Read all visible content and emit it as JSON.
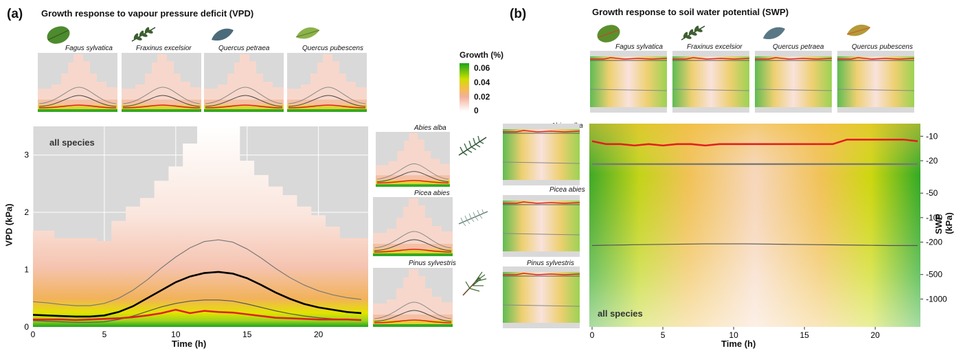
{
  "panel_a": {
    "letter": "(a)",
    "title": "Growth response to vapour pressure deficit (VPD)",
    "species_top": [
      "Fagus sylvatica",
      "Fraxinus excelsior",
      "Quercus petraea",
      "Quercus pubescens"
    ],
    "species_side": [
      "Abies alba",
      "Picea abies",
      "Pinus sylvestris"
    ],
    "main_label": "all species"
  },
  "panel_b": {
    "letter": "(b)",
    "title": "Growth response to soil water potential (SWP)",
    "species_top": [
      "Fagus sylvatica",
      "Fraxinus excelsior",
      "Quercus petraea",
      "Quercus pubescens"
    ],
    "species_side": [
      "Abies alba",
      "Picea abies",
      "Pinus sylvestris"
    ],
    "main_label": "all species"
  },
  "legend": {
    "title": "Growth (%)",
    "ticks": [
      "0.06",
      "0.04",
      "0.02",
      "0"
    ],
    "colors": [
      "#1aa51a",
      "#e3e300",
      "#f3b09a",
      "#ffffff"
    ]
  },
  "chart_data": [
    {
      "type": "line",
      "title": "Growth response to vapour pressure deficit (VPD)",
      "xlabel": "Time (h)",
      "ylabel": "VPD (kPa)",
      "xlim": [
        0,
        23
      ],
      "ylim": [
        0,
        3.5
      ],
      "xticks": [
        "0",
        "5",
        "10",
        "15",
        "20"
      ],
      "yticks": [
        "0",
        "1",
        "2",
        "3"
      ],
      "x": [
        0,
        1,
        2,
        3,
        4,
        5,
        6,
        7,
        8,
        9,
        10,
        11,
        12,
        13,
        14,
        15,
        16,
        17,
        18,
        19,
        20,
        21,
        22,
        23
      ],
      "series": [
        {
          "role": "upper",
          "values": [
            0.44,
            0.42,
            0.39,
            0.37,
            0.37,
            0.41,
            0.5,
            0.64,
            0.82,
            1.03,
            1.22,
            1.38,
            1.49,
            1.52,
            1.48,
            1.36,
            1.2,
            1.02,
            0.86,
            0.73,
            0.63,
            0.56,
            0.51,
            0.48
          ]
        },
        {
          "role": "median",
          "values": [
            0.21,
            0.2,
            0.19,
            0.18,
            0.18,
            0.2,
            0.26,
            0.36,
            0.5,
            0.64,
            0.78,
            0.88,
            0.94,
            0.96,
            0.93,
            0.85,
            0.73,
            0.6,
            0.49,
            0.4,
            0.34,
            0.3,
            0.26,
            0.24
          ]
        },
        {
          "role": "lower",
          "values": [
            0.11,
            0.1,
            0.09,
            0.08,
            0.08,
            0.09,
            0.13,
            0.19,
            0.27,
            0.35,
            0.41,
            0.45,
            0.47,
            0.47,
            0.45,
            0.4,
            0.34,
            0.28,
            0.23,
            0.19,
            0.16,
            0.14,
            0.13,
            0.12
          ]
        },
        {
          "role": "optimum",
          "values": [
            0.13,
            0.13,
            0.13,
            0.12,
            0.13,
            0.14,
            0.15,
            0.17,
            0.2,
            0.24,
            0.3,
            0.24,
            0.28,
            0.26,
            0.25,
            0.22,
            0.19,
            0.16,
            0.15,
            0.14,
            0.13,
            0.13,
            0.13,
            0.12
          ]
        }
      ],
      "envelope_max": [
        1.68,
        1.68,
        1.55,
        1.55,
        1.55,
        1.5,
        1.85,
        2.1,
        2.25,
        2.55,
        2.8,
        3.2,
        3.5,
        3.5,
        3.5,
        2.9,
        2.65,
        2.45,
        2.3,
        2.1,
        1.95,
        1.75,
        1.55,
        1.55
      ],
      "grid": true
    },
    {
      "type": "line",
      "title": "Growth response to soil water potential (SWP)",
      "xlabel": "Time (h)",
      "ylabel": "SWP (kPa)",
      "xlim": [
        0,
        23
      ],
      "xticks": [
        "0",
        "5",
        "10",
        "15",
        "20"
      ],
      "yticks": [
        "-10",
        "-20",
        "-50",
        "-100",
        "-200",
        "-500",
        "-1000"
      ],
      "x": [
        0,
        1,
        2,
        3,
        4,
        5,
        6,
        7,
        8,
        9,
        10,
        11,
        12,
        13,
        14,
        15,
        16,
        17,
        18,
        19,
        20,
        21,
        22,
        23
      ],
      "series": [
        {
          "role": "upper",
          "values": [
            -22,
            -22,
            -22,
            -22,
            -22,
            -22,
            -22,
            -22,
            -22,
            -22,
            -22,
            -22,
            -22,
            -22,
            -22,
            -22,
            -22,
            -22,
            -22,
            -22,
            -22,
            -22,
            -22,
            -22
          ]
        },
        {
          "role": "lower",
          "values": [
            -220,
            -218,
            -217,
            -215,
            -214,
            -213,
            -212,
            -211,
            -210,
            -210,
            -210,
            -210,
            -211,
            -212,
            -213,
            -214,
            -215,
            -216,
            -217,
            -218,
            -219,
            -220,
            -220,
            -220
          ]
        },
        {
          "role": "optimum",
          "values": [
            -11.5,
            -12.5,
            -12.5,
            -13,
            -12.5,
            -13,
            -12.5,
            -12.5,
            -13,
            -12.5,
            -12.5,
            -12.5,
            -12.5,
            -12.5,
            -12.5,
            -12.5,
            -12.5,
            -12.5,
            -11,
            -11,
            -11,
            -11,
            -11,
            -11.5
          ]
        }
      ],
      "grid": false
    }
  ]
}
